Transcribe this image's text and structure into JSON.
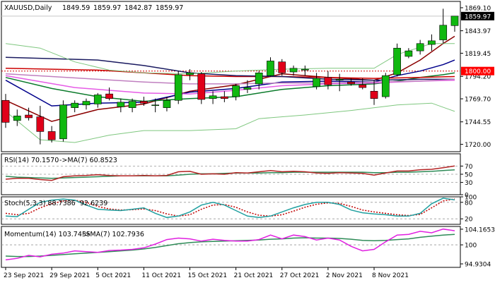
{
  "chart_data": {
    "type": "candlestick",
    "symbol": "XAUUSD",
    "timeframe": "Daily",
    "ohlc_header": {
      "open": "1849.59",
      "high": "1859.97",
      "low": "1842.87",
      "close": "1859.97"
    },
    "price_axis": {
      "ylim": [
        1712,
        1876
      ],
      "ticks": [
        {
          "label": "1869.10",
          "value": 1869.1
        },
        {
          "label": "1843.97",
          "value": 1843.97
        },
        {
          "label": "1819.45",
          "value": 1819.45
        },
        {
          "label": "1794.20",
          "value": 1794.2
        },
        {
          "label": "1769.70",
          "value": 1769.7
        },
        {
          "label": "1744.55",
          "value": 1744.55
        },
        {
          "label": "1720.00",
          "value": 1720.0
        }
      ],
      "current_price": {
        "label": "1859.97",
        "value": 1859.97
      },
      "marked_level": {
        "label": "1800.00",
        "value": 1800.0
      }
    },
    "x_axis": {
      "tick_labels": [
        "23 Sep 2021",
        "29 Sep 2021",
        "5 Oct 2021",
        "11 Oct 2021",
        "15 Oct 2021",
        "21 Oct 2021",
        "27 Oct 2021",
        "2 Nov 2021",
        "8 Nov 2021"
      ],
      "tick_candle_index": [
        0,
        4,
        8,
        12,
        16,
        20,
        24,
        28,
        32
      ]
    },
    "candles": [
      {
        "o": 1768,
        "h": 1775,
        "l": 1738,
        "c": 1744
      },
      {
        "o": 1746,
        "h": 1758,
        "l": 1740,
        "c": 1751
      },
      {
        "o": 1752,
        "h": 1760,
        "l": 1746,
        "c": 1749
      },
      {
        "o": 1750,
        "h": 1762,
        "l": 1720,
        "c": 1734
      },
      {
        "o": 1734,
        "h": 1740,
        "l": 1722,
        "c": 1725
      },
      {
        "o": 1726,
        "h": 1768,
        "l": 1723,
        "c": 1763
      },
      {
        "o": 1760,
        "h": 1768,
        "l": 1755,
        "c": 1765
      },
      {
        "o": 1763,
        "h": 1770,
        "l": 1758,
        "c": 1767
      },
      {
        "o": 1764,
        "h": 1776,
        "l": 1760,
        "c": 1774
      },
      {
        "o": 1775,
        "h": 1782,
        "l": 1768,
        "c": 1770
      },
      {
        "o": 1761,
        "h": 1770,
        "l": 1755,
        "c": 1766
      },
      {
        "o": 1760,
        "h": 1770,
        "l": 1755,
        "c": 1767
      },
      {
        "o": 1767,
        "h": 1772,
        "l": 1762,
        "c": 1765
      },
      {
        "o": 1763,
        "h": 1770,
        "l": 1755,
        "c": 1763
      },
      {
        "o": 1760,
        "h": 1772,
        "l": 1756,
        "c": 1768
      },
      {
        "o": 1768,
        "h": 1800,
        "l": 1764,
        "c": 1796
      },
      {
        "o": 1796,
        "h": 1802,
        "l": 1790,
        "c": 1798
      },
      {
        "o": 1797,
        "h": 1799,
        "l": 1764,
        "c": 1769
      },
      {
        "o": 1770,
        "h": 1778,
        "l": 1764,
        "c": 1773
      },
      {
        "o": 1772,
        "h": 1778,
        "l": 1766,
        "c": 1770
      },
      {
        "o": 1772,
        "h": 1786,
        "l": 1768,
        "c": 1784
      },
      {
        "o": 1780,
        "h": 1790,
        "l": 1776,
        "c": 1782
      },
      {
        "o": 1786,
        "h": 1800,
        "l": 1780,
        "c": 1798
      },
      {
        "o": 1795,
        "h": 1815,
        "l": 1794,
        "c": 1811
      },
      {
        "o": 1810,
        "h": 1813,
        "l": 1795,
        "c": 1798
      },
      {
        "o": 1799,
        "h": 1806,
        "l": 1795,
        "c": 1803
      },
      {
        "o": 1801,
        "h": 1806,
        "l": 1795,
        "c": 1802
      },
      {
        "o": 1783,
        "h": 1798,
        "l": 1780,
        "c": 1792
      },
      {
        "o": 1793,
        "h": 1800,
        "l": 1780,
        "c": 1785
      },
      {
        "o": 1790,
        "h": 1797,
        "l": 1778,
        "c": 1791
      },
      {
        "o": 1788,
        "h": 1792,
        "l": 1784,
        "c": 1786
      },
      {
        "o": 1785,
        "h": 1792,
        "l": 1780,
        "c": 1782
      },
      {
        "o": 1778,
        "h": 1790,
        "l": 1763,
        "c": 1770
      },
      {
        "o": 1772,
        "h": 1798,
        "l": 1770,
        "c": 1795
      },
      {
        "o": 1796,
        "h": 1830,
        "l": 1794,
        "c": 1825
      },
      {
        "o": 1816,
        "h": 1825,
        "l": 1814,
        "c": 1822
      },
      {
        "o": 1822,
        "h": 1834,
        "l": 1818,
        "c": 1830
      },
      {
        "o": 1829,
        "h": 1840,
        "l": 1822,
        "c": 1833
      },
      {
        "o": 1834,
        "h": 1868,
        "l": 1830,
        "c": 1850
      },
      {
        "o": 1849.59,
        "h": 1859.97,
        "l": 1842.87,
        "c": 1859.97
      }
    ],
    "overlays": [
      {
        "color": "#8b0000",
        "points": [
          [
            0,
            1768
          ],
          [
            4,
            1745
          ],
          [
            8,
            1758
          ],
          [
            12,
            1764
          ],
          [
            16,
            1778
          ],
          [
            20,
            1785
          ],
          [
            24,
            1797
          ],
          [
            28,
            1793
          ],
          [
            32,
            1790
          ],
          [
            34,
            1798
          ],
          [
            36,
            1812
          ],
          [
            38,
            1830
          ],
          [
            39,
            1838
          ]
        ]
      },
      {
        "color": "#00008b",
        "points": [
          [
            0,
            1790
          ],
          [
            4,
            1762
          ],
          [
            8,
            1765
          ],
          [
            12,
            1766
          ],
          [
            16,
            1777
          ],
          [
            20,
            1781
          ],
          [
            24,
            1788
          ],
          [
            28,
            1789
          ],
          [
            32,
            1788
          ],
          [
            34,
            1795
          ],
          [
            36,
            1800
          ],
          [
            38,
            1807
          ],
          [
            39,
            1812
          ]
        ]
      },
      {
        "color": "#0a7a2a",
        "points": [
          [
            0,
            1793
          ],
          [
            4,
            1781
          ],
          [
            8,
            1772
          ],
          [
            12,
            1767
          ],
          [
            16,
            1770
          ],
          [
            20,
            1772
          ],
          [
            24,
            1780
          ],
          [
            28,
            1784
          ],
          [
            32,
            1786
          ],
          [
            34,
            1789
          ],
          [
            36,
            1793
          ],
          [
            38,
            1796
          ],
          [
            39,
            1798
          ]
        ]
      },
      {
        "color": "#cc0000",
        "points": [
          [
            0,
            1803
          ],
          [
            8,
            1801
          ],
          [
            12,
            1798
          ],
          [
            16,
            1795
          ],
          [
            20,
            1794
          ],
          [
            24,
            1794
          ],
          [
            28,
            1793
          ],
          [
            32,
            1792
          ],
          [
            36,
            1793
          ],
          [
            39,
            1794
          ]
        ]
      },
      {
        "color": "#1a1a60",
        "points": [
          [
            0,
            1815
          ],
          [
            8,
            1812
          ],
          [
            12,
            1806
          ],
          [
            16,
            1798
          ],
          [
            20,
            1795
          ],
          [
            24,
            1794
          ],
          [
            28,
            1791
          ],
          [
            32,
            1790
          ],
          [
            36,
            1791
          ],
          [
            39,
            1791
          ]
        ]
      },
      {
        "color": "#e65ce6",
        "points": [
          [
            0,
            1795
          ],
          [
            6,
            1782
          ],
          [
            12,
            1776
          ],
          [
            16,
            1775
          ],
          [
            20,
            1779
          ],
          [
            24,
            1784
          ],
          [
            28,
            1786
          ],
          [
            32,
            1787
          ],
          [
            36,
            1789
          ],
          [
            39,
            1790
          ]
        ]
      },
      {
        "color": "#c080c0",
        "points": [
          [
            0,
            1797
          ],
          [
            8,
            1791
          ],
          [
            12,
            1788
          ],
          [
            16,
            1786
          ],
          [
            20,
            1786
          ],
          [
            24,
            1787
          ],
          [
            28,
            1787
          ],
          [
            32,
            1788
          ],
          [
            36,
            1789
          ],
          [
            39,
            1791
          ]
        ]
      },
      {
        "color": "#7fc77f",
        "points": [
          [
            0,
            1830
          ],
          [
            3,
            1825
          ],
          [
            6,
            1810
          ],
          [
            9,
            1801
          ],
          [
            12,
            1798
          ],
          [
            16,
            1797
          ],
          [
            20,
            1800
          ],
          [
            24,
            1802
          ],
          [
            28,
            1803
          ],
          [
            32,
            1803
          ],
          [
            34,
            1818
          ],
          [
            37,
            1830
          ],
          [
            39,
            1830
          ]
        ]
      },
      {
        "color": "#7fc77f",
        "points": [
          [
            0,
            1756
          ],
          [
            3,
            1725
          ],
          [
            6,
            1722
          ],
          [
            9,
            1730
          ],
          [
            12,
            1735
          ],
          [
            16,
            1735
          ],
          [
            20,
            1737
          ],
          [
            22,
            1748
          ],
          [
            26,
            1752
          ],
          [
            30,
            1757
          ],
          [
            34,
            1763
          ],
          [
            37,
            1765
          ],
          [
            39,
            1756
          ]
        ]
      }
    ],
    "rsi": {
      "label": "RSI(14) 70.1570",
      "ma_label": "->MA(7) 60.8523",
      "ylim": [
        0,
        100
      ],
      "ticks": [
        {
          "label": "70",
          "value": 70
        },
        {
          "label": "50",
          "value": 50
        },
        {
          "label": "30",
          "value": 30
        },
        {
          "label": "0",
          "value": 0
        }
      ],
      "values": [
        38,
        40,
        40,
        37,
        35,
        44,
        46,
        47,
        49,
        47,
        46,
        46,
        47,
        46,
        47,
        56,
        57,
        50,
        51,
        50,
        54,
        53,
        56,
        59,
        56,
        57,
        56,
        53,
        52,
        54,
        53,
        52,
        48,
        53,
        58,
        58,
        61,
        62,
        66,
        70.157
      ],
      "ma_values": [
        45,
        43,
        42,
        41,
        40,
        41,
        42,
        43,
        44,
        45,
        46,
        46,
        46,
        46,
        46,
        48,
        50,
        51,
        51,
        52,
        53,
        53,
        53,
        54,
        54,
        55,
        55,
        55,
        55,
        55,
        55,
        55,
        54,
        54,
        55,
        55,
        56,
        57,
        59,
        60.8523
      ]
    },
    "stoch": {
      "label": "Stoch(5,3,3) 88.7386",
      "value_label": "92.6239",
      "ylim": [
        0,
        100
      ],
      "ticks": [
        {
          "label": "80",
          "value": 80
        },
        {
          "label": "100",
          "value": 100
        },
        {
          "label": "20",
          "value": 20
        }
      ],
      "values": [
        30,
        28,
        55,
        80,
        88,
        92,
        88,
        70,
        55,
        52,
        50,
        55,
        60,
        40,
        25,
        30,
        45,
        70,
        80,
        70,
        50,
        30,
        25,
        30,
        45,
        60,
        72,
        80,
        80,
        72,
        52,
        42,
        38,
        35,
        30,
        30,
        40,
        75,
        95,
        88.7386
      ],
      "signal_values": [
        40,
        35,
        40,
        60,
        75,
        85,
        88,
        80,
        65,
        56,
        52,
        53,
        56,
        50,
        38,
        30,
        35,
        55,
        70,
        72,
        62,
        45,
        33,
        30,
        35,
        48,
        62,
        73,
        78,
        76,
        65,
        52,
        45,
        40,
        35,
        32,
        36,
        60,
        85,
        92.6239
      ]
    },
    "momentum": {
      "label": "Momentum(14) 103.7455",
      "ma_label": "->MA(7) 102.7936",
      "ylim": [
        94.0,
        104.9
      ],
      "ticks": [
        {
          "label": "104.1653",
          "value": 104.1653
        },
        {
          "label": "100",
          "value": 100
        },
        {
          "label": "94.9304",
          "value": 94.9304
        }
      ],
      "values": [
        96.0,
        96.4,
        97.2,
        96.8,
        97.5,
        97.8,
        98.4,
        98.2,
        98.0,
        98.5,
        98.6,
        98.8,
        99.2,
        100.2,
        101.4,
        101.8,
        101.6,
        101.0,
        101.5,
        101.2,
        101.0,
        101.0,
        101.4,
        102.6,
        101.6,
        102.6,
        102.2,
        101.3,
        101.8,
        101.3,
        99.6,
        98.4,
        98.8,
        100.8,
        102.6,
        102.8,
        103.6,
        103.2,
        104.2,
        103.7455
      ],
      "ma_values": [
        97.0,
        96.9,
        96.9,
        97.0,
        97.2,
        97.4,
        97.6,
        97.8,
        98.0,
        98.2,
        98.4,
        98.6,
        98.9,
        99.3,
        99.8,
        100.3,
        100.6,
        100.8,
        100.9,
        101.0,
        101.1,
        101.2,
        101.3,
        101.5,
        101.6,
        101.8,
        101.9,
        101.8,
        101.8,
        101.7,
        101.5,
        101.2,
        101.1,
        101.2,
        101.4,
        101.6,
        102.0,
        102.3,
        102.6,
        102.7936
      ]
    },
    "colors": {
      "bull": "#10b810",
      "bear": "#e0001a",
      "rsi": "#b22222",
      "rsi_ma": "#2e8b57",
      "stoch_main": "#20a0a0",
      "stoch_signal": "#c00000",
      "momentum": "#e020e0",
      "momentum_ma": "#2e8b57",
      "level_line": "#d00000",
      "current_price_box": "#000000",
      "level_box": "#ff0000"
    }
  }
}
